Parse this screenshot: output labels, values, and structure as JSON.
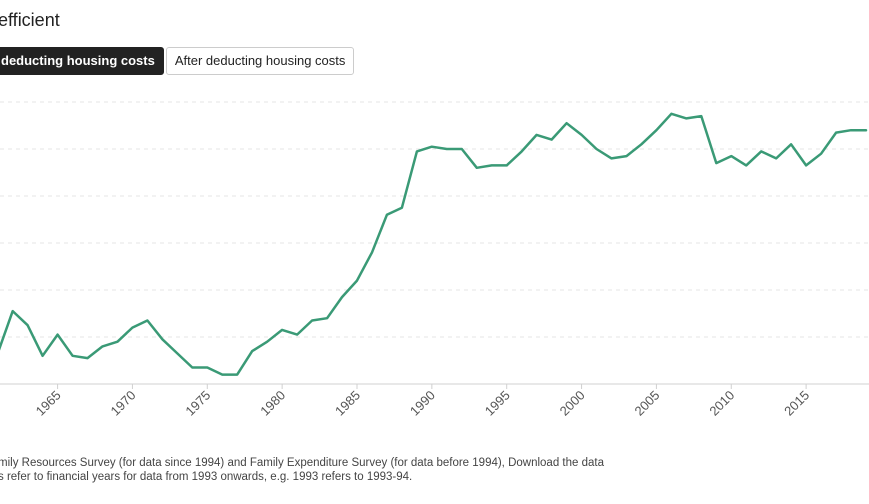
{
  "title": "efficient",
  "toggles": [
    {
      "label": "deducting housing costs",
      "active": true
    },
    {
      "label": "After deducting housing costs",
      "active": false
    }
  ],
  "notes": [
    "mily Resources Survey (for data since 1994) and Family Expenditure Survey (for data before 1994), Download the data",
    "s refer to financial years for data from 1993 onwards, e.g. 1993 refers to 1993-94."
  ],
  "colors": {
    "line": "#3a9a76",
    "grid": "#e6e6e6",
    "axis": "#d0d0d0",
    "tick_text": "#555555"
  },
  "chart_data": {
    "type": "line",
    "title": "",
    "xlabel": "",
    "ylabel": "",
    "grid": true,
    "xlim": [
      1961,
      2019
    ],
    "ylim": [
      0.25,
      0.37
    ],
    "x_ticks": [
      1965,
      1970,
      1975,
      1980,
      1985,
      1990,
      1995,
      2000,
      2005,
      2010,
      2015
    ],
    "series": [
      {
        "name": "",
        "color": "#3a9a76",
        "x": [
          1961,
          1962,
          1963,
          1964,
          1965,
          1966,
          1967,
          1968,
          1969,
          1970,
          1971,
          1972,
          1973,
          1974,
          1975,
          1976,
          1977,
          1978,
          1979,
          1980,
          1981,
          1982,
          1983,
          1984,
          1985,
          1986,
          1987,
          1988,
          1989,
          1990,
          1991,
          1992,
          1993,
          1994,
          1995,
          1996,
          1997,
          1998,
          1999,
          2000,
          2001,
          2002,
          2003,
          2004,
          2005,
          2006,
          2007,
          2008,
          2009,
          2010,
          2011,
          2012,
          2013,
          2014,
          2015,
          2016,
          2017,
          2018,
          2019
        ],
        "values": [
          0.263,
          0.281,
          0.275,
          0.262,
          0.271,
          0.262,
          0.261,
          0.266,
          0.268,
          0.274,
          0.277,
          0.269,
          0.263,
          0.257,
          0.257,
          0.254,
          0.254,
          0.264,
          0.268,
          0.273,
          0.271,
          0.277,
          0.278,
          0.287,
          0.294,
          0.306,
          0.322,
          0.325,
          0.349,
          0.351,
          0.35,
          0.35,
          0.342,
          0.343,
          0.343,
          0.349,
          0.356,
          0.354,
          0.361,
          0.356,
          0.35,
          0.346,
          0.347,
          0.352,
          0.358,
          0.365,
          0.363,
          0.364,
          0.344,
          0.347,
          0.343,
          0.349,
          0.346,
          0.352,
          0.343,
          0.348,
          0.357,
          0.358,
          0.358
        ]
      }
    ]
  }
}
